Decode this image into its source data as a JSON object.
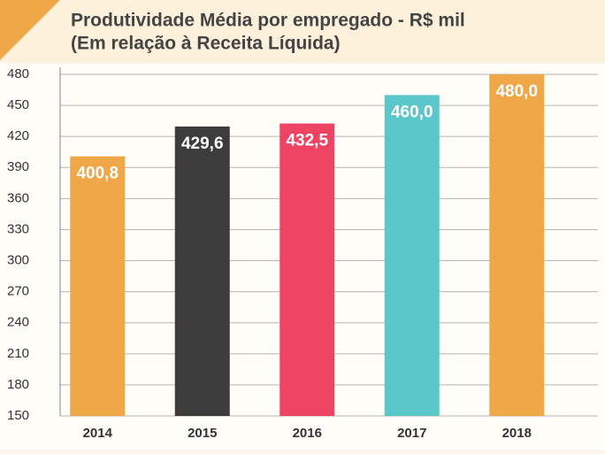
{
  "chart_data": {
    "type": "bar",
    "title": "Produtividade Média por empregado - R$ mil",
    "subtitle": "(Em relação à Receita Líquida)",
    "categories": [
      "2014",
      "2015",
      "2016",
      "2017",
      "2018"
    ],
    "values": [
      400.8,
      429.6,
      432.5,
      460.0,
      480.0
    ],
    "value_labels": [
      "400,8",
      "429,6",
      "432,5",
      "460,0",
      "480,0"
    ],
    "colors": [
      "#f0a747",
      "#3c3c3c",
      "#ee4464",
      "#5cc7cb",
      "#f0a747"
    ],
    "ylim": [
      150,
      480
    ],
    "yticks": [
      150,
      180,
      210,
      240,
      270,
      300,
      330,
      360,
      390,
      420,
      450,
      480
    ],
    "grid": true
  }
}
